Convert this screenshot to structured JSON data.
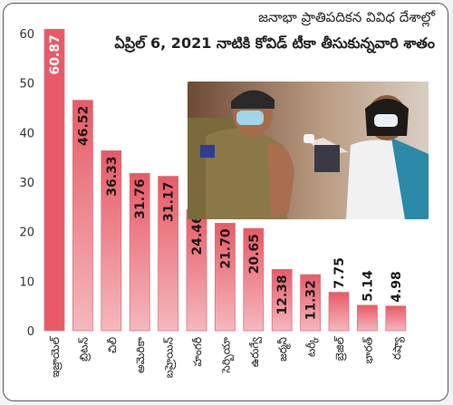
{
  "header": {
    "line1": "జనాభా ప్రాతిపదికన వివిధ దేశాల్లో",
    "line2": "ఏప్రిల్ 6, 2021 నాటికి కోవిడ్ టీకా తీసుకున్నవారి శాతం"
  },
  "photo": {
    "icon": "vaccination-photo"
  },
  "colors": {
    "bar_top": "#e85a66",
    "bar_fill": "#f4b8bd",
    "bar_edge": "#d97580",
    "axis_text": "#333333",
    "value_text": "#1a1a1a"
  },
  "chart_data": {
    "type": "bar",
    "categories": [
      "ఇజ్రాయెల్",
      "బ్రిటన్",
      "చిలీ",
      "అమెరికా",
      "బహ్రెయిన్",
      "హంగరీ",
      "సెర్బియా",
      "ఉరుగ్వే",
      "జర్మనీ",
      "టర్కీ",
      "బ్రెజిల్",
      "భారత్",
      "రష్యా"
    ],
    "values": [
      60.87,
      46.52,
      36.33,
      31.76,
      31.17,
      24.46,
      21.7,
      20.65,
      12.38,
      11.32,
      7.75,
      5.14,
      4.98
    ],
    "value_labels": [
      "60.87",
      "46.52",
      "36.33",
      "31.76",
      "31.17",
      "24.46",
      "21.70",
      "20.65",
      "12.38",
      "11.32",
      "7.75",
      "5.14",
      "4.98"
    ],
    "yticks": [
      "0",
      "10",
      "20",
      "30",
      "40",
      "50",
      "60"
    ],
    "ylim": [
      0,
      62
    ],
    "title": "",
    "xlabel": "",
    "ylabel": ""
  }
}
